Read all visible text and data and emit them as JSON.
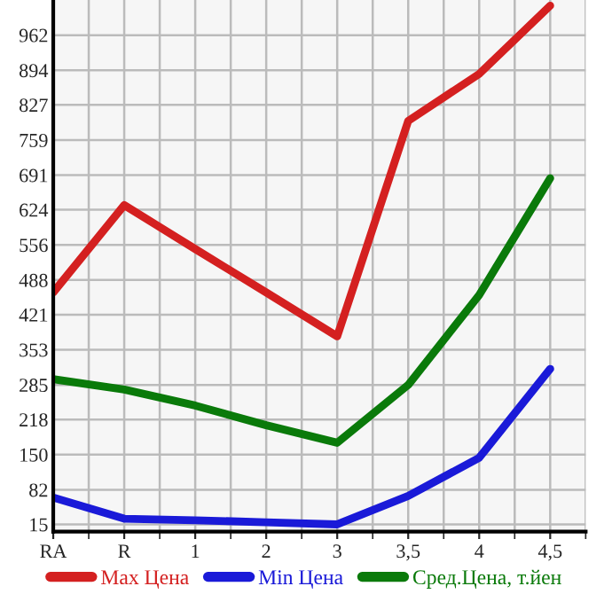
{
  "chart_data": {
    "type": "line",
    "categories": [
      "RA",
      "R",
      "1",
      "2",
      "3",
      "3,5",
      "4",
      "4,5"
    ],
    "series": [
      {
        "name": "Max Цена",
        "color": "#d42020",
        "values": [
          464,
          633,
          548,
          464,
          379,
          796,
          887,
          1019
        ]
      },
      {
        "name": "Min Цена",
        "color": "#1a1ad8",
        "values": [
          67,
          26,
          23,
          19,
          15,
          70,
          144,
          316
        ]
      },
      {
        "name": "Сред.Цена, т.йен",
        "color": "#0a7a0a",
        "values": [
          296,
          276,
          245,
          207,
          173,
          285,
          459,
          685
        ]
      }
    ],
    "ylim": [
      1,
      1030
    ],
    "yticks": [
      15,
      82,
      150,
      218,
      285,
      353,
      421,
      488,
      556,
      624,
      691,
      759,
      827,
      894,
      962
    ],
    "grid": true,
    "legend": "bottom",
    "marker": "none",
    "line_style": "solid"
  }
}
